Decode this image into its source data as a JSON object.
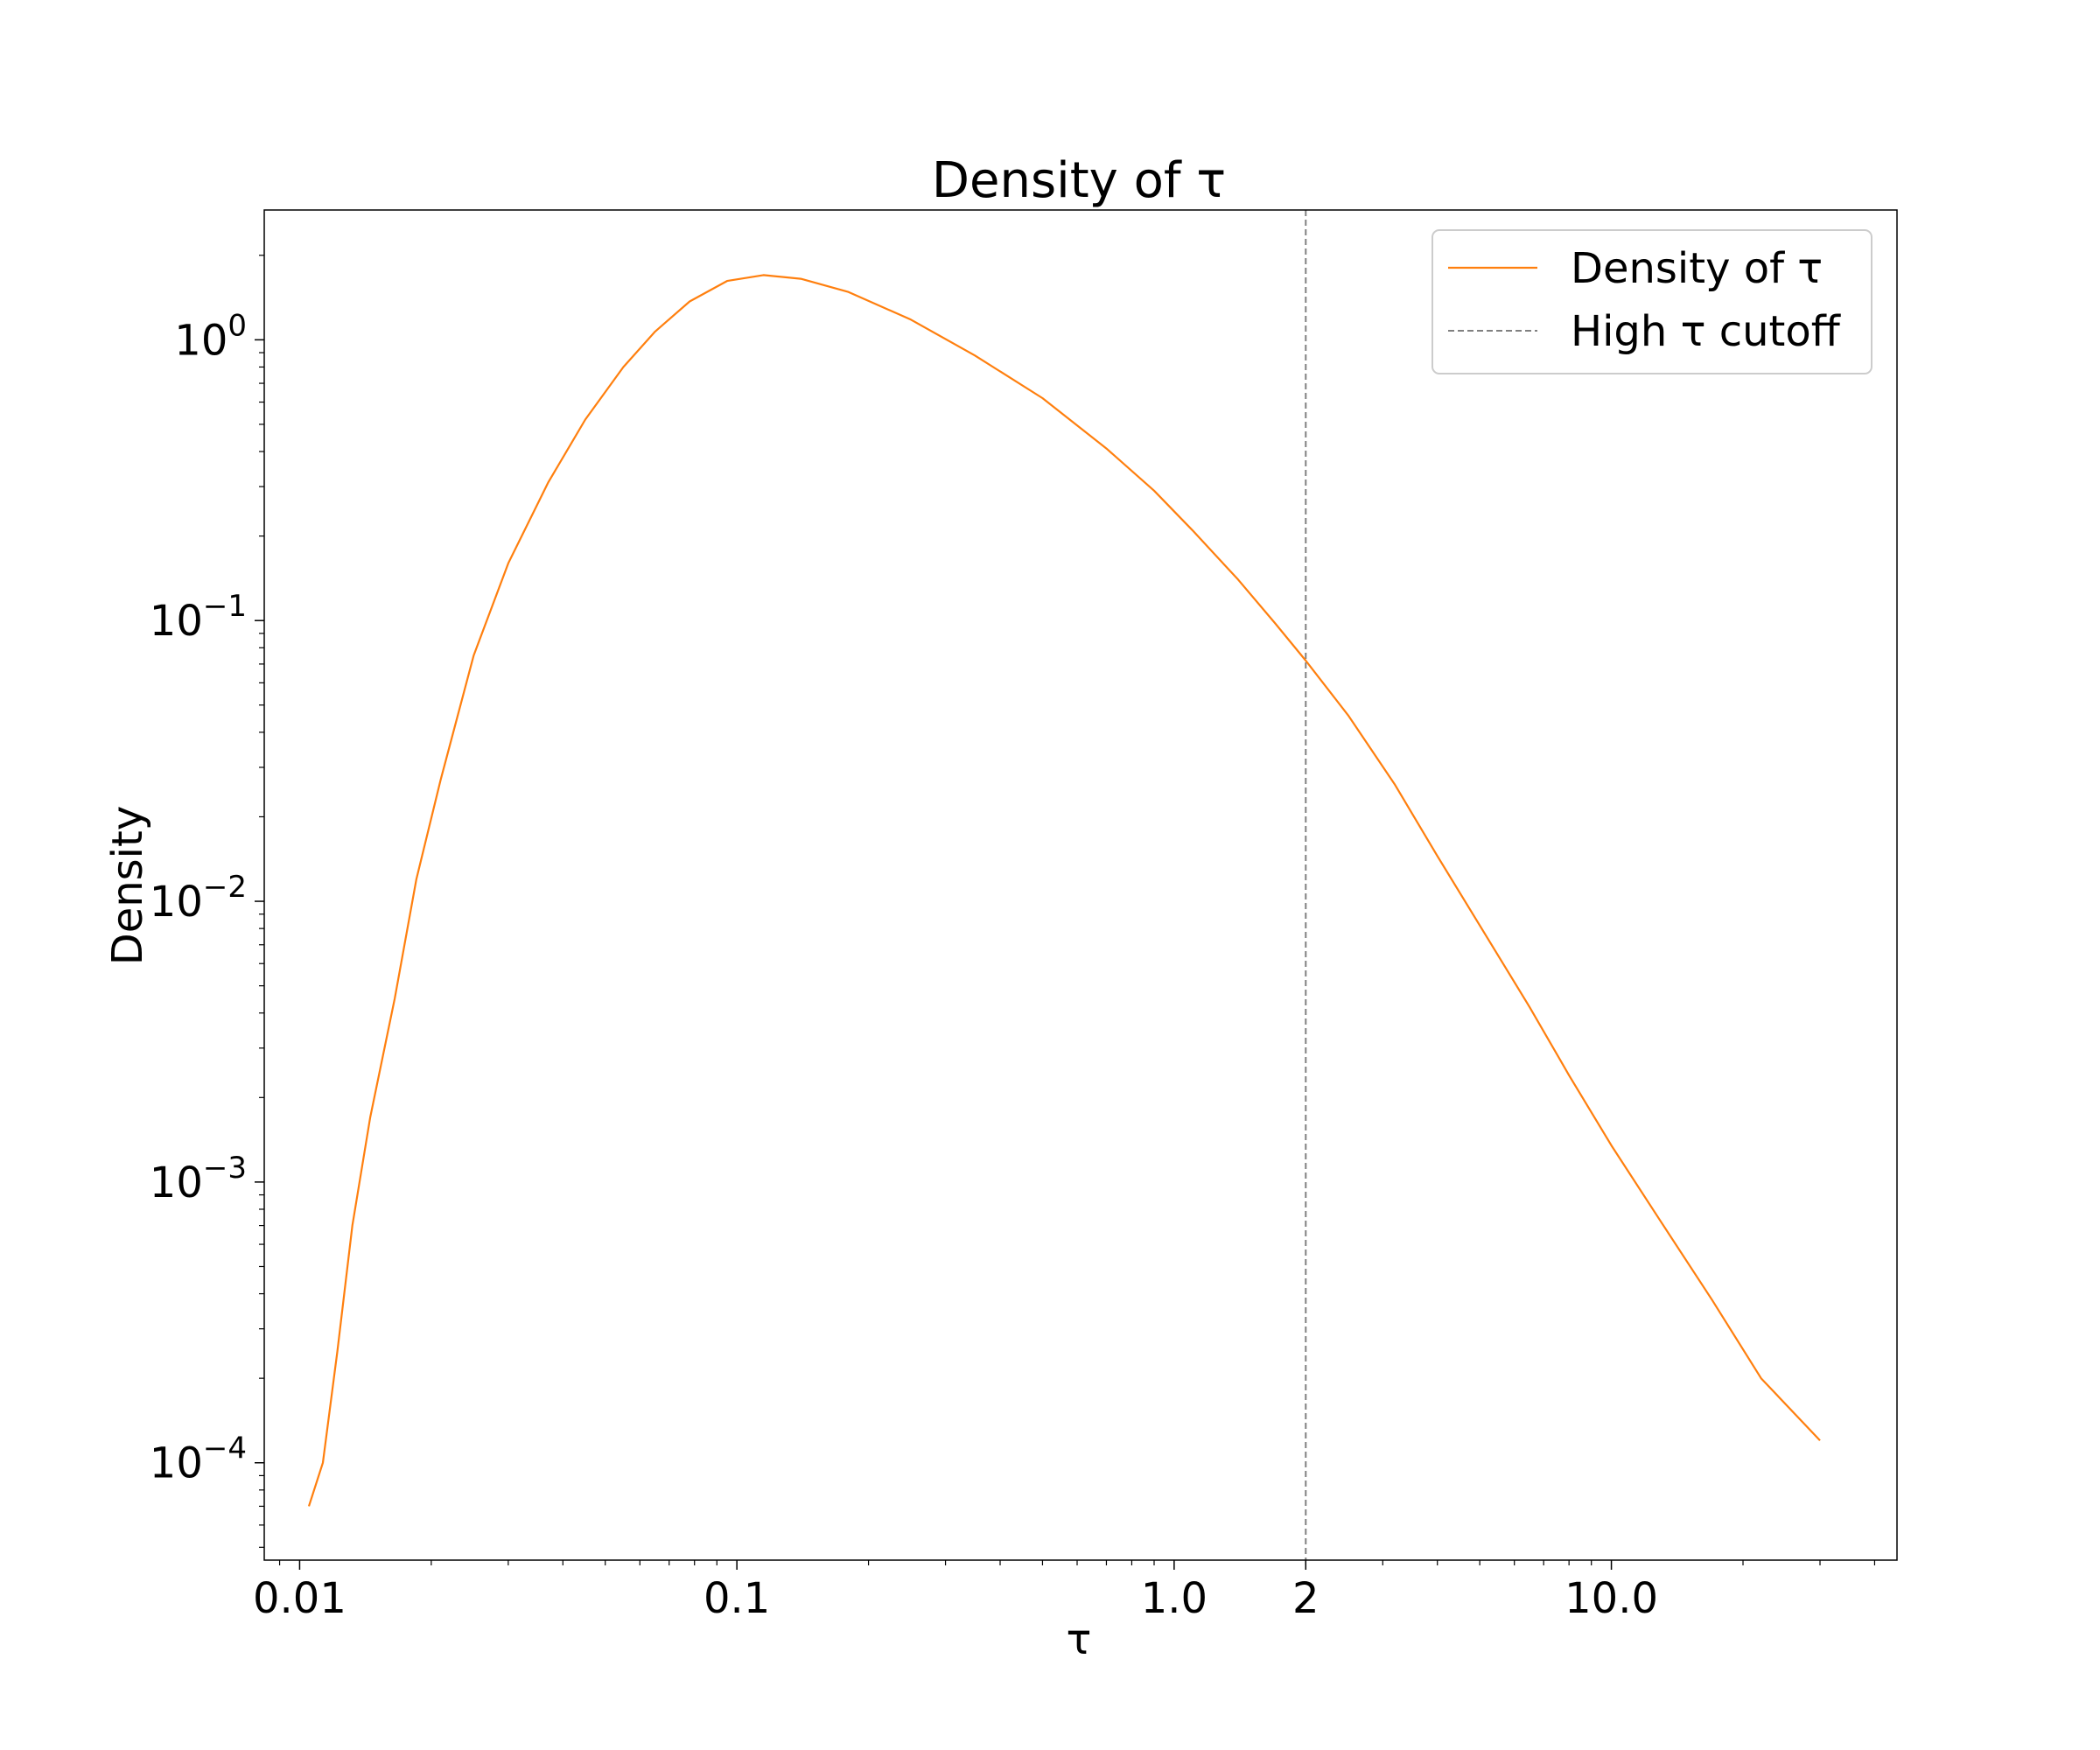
{
  "chart_data": {
    "type": "line",
    "title": "Density of τ",
    "xlabel": "τ",
    "ylabel": "Density",
    "xscale": "log",
    "yscale": "log",
    "xlim": [
      0.0083,
      45
    ],
    "ylim": [
      4.5e-05,
      2.9
    ],
    "grid": false,
    "legend_position": "top-right",
    "x_ticks": [
      {
        "value": 0.01,
        "label": "0.01"
      },
      {
        "value": 0.1,
        "label": "0.1"
      },
      {
        "value": 1.0,
        "label": "1.0"
      },
      {
        "value": 2,
        "label": "2"
      },
      {
        "value": 10.0,
        "label": "10.0"
      }
    ],
    "y_ticks": [
      {
        "value": 1,
        "base": "10",
        "exp": "0"
      },
      {
        "value": 0.1,
        "base": "10",
        "exp": "−1"
      },
      {
        "value": 0.01,
        "base": "10",
        "exp": "−2"
      },
      {
        "value": 0.001,
        "base": "10",
        "exp": "−3"
      },
      {
        "value": 0.0001,
        "base": "10",
        "exp": "−4"
      }
    ],
    "series": [
      {
        "name": "Density of τ",
        "color": "#ff7f0e",
        "style": "solid",
        "points": [
          [
            0.0105,
            7e-05
          ],
          [
            0.0113,
            0.0001
          ],
          [
            0.0122,
            0.00025
          ],
          [
            0.0132,
            0.0007
          ],
          [
            0.0145,
            0.0017
          ],
          [
            0.0165,
            0.0045
          ],
          [
            0.0185,
            0.012
          ],
          [
            0.021,
            0.027
          ],
          [
            0.025,
            0.075
          ],
          [
            0.03,
            0.16
          ],
          [
            0.037,
            0.31
          ],
          [
            0.045,
            0.52
          ],
          [
            0.055,
            0.8
          ],
          [
            0.065,
            1.07
          ],
          [
            0.078,
            1.37
          ],
          [
            0.095,
            1.62
          ],
          [
            0.115,
            1.7
          ],
          [
            0.14,
            1.65
          ],
          [
            0.18,
            1.48
          ],
          [
            0.25,
            1.18
          ],
          [
            0.35,
            0.88
          ],
          [
            0.5,
            0.62
          ],
          [
            0.7,
            0.41
          ],
          [
            0.9,
            0.29
          ],
          [
            1.1,
            0.21
          ],
          [
            1.4,
            0.14
          ],
          [
            1.7,
            0.098
          ],
          [
            2.0,
            0.072
          ],
          [
            2.5,
            0.046
          ],
          [
            3.2,
            0.026
          ],
          [
            4.0,
            0.0145
          ],
          [
            5.0,
            0.0082
          ],
          [
            6.5,
            0.0042
          ],
          [
            8.0,
            0.0024
          ],
          [
            10.0,
            0.00135
          ],
          [
            13.0,
            0.00072
          ],
          [
            17.0,
            0.00038
          ],
          [
            22.0,
            0.0002
          ],
          [
            30.0,
            0.00012
          ]
        ]
      }
    ],
    "cutoff": {
      "name": "High τ cutoff",
      "x": 2,
      "color": "#808080",
      "style": "dashed"
    }
  }
}
